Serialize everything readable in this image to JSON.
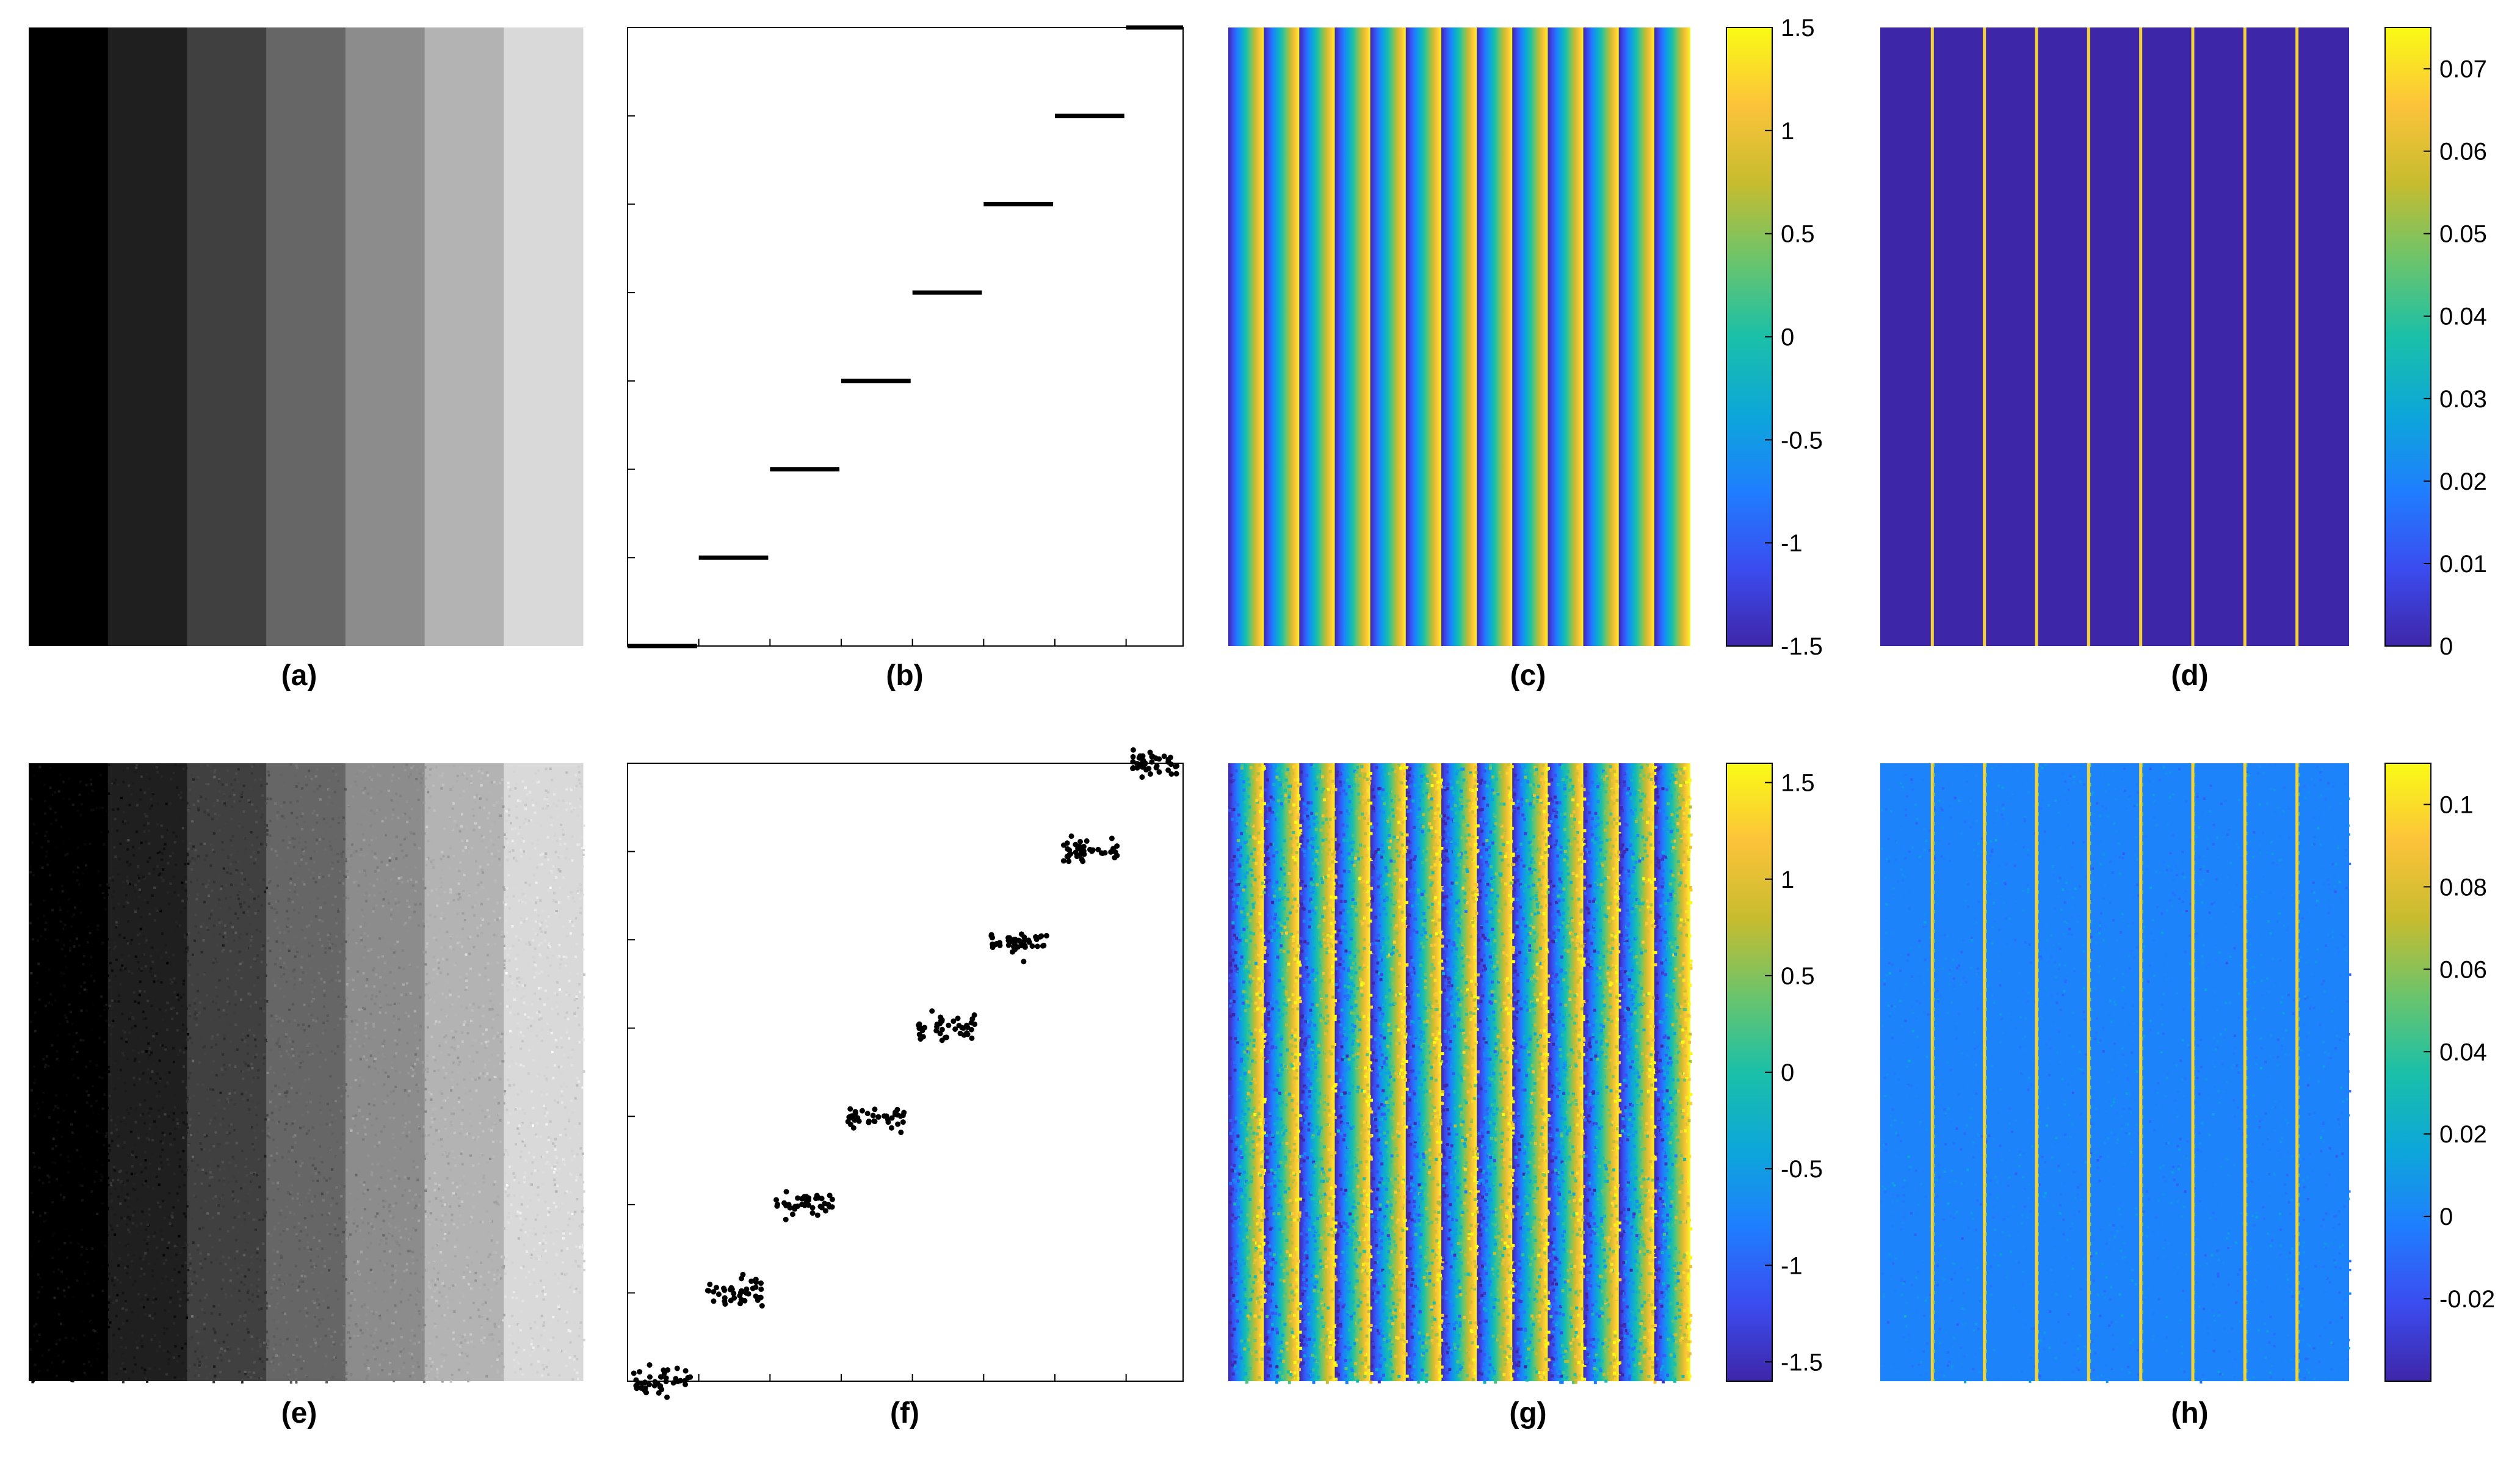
{
  "colors": {
    "background": "#ffffff",
    "ink": "#000000",
    "gray_stripes": [
      "#000000",
      "#1f1f1f",
      "#404040",
      "#666666",
      "#8c8c8c",
      "#b3b3b3",
      "#d9d9d9"
    ],
    "parula": [
      "#3e26a8",
      "#3b4cf0",
      "#1f7eff",
      "#0ca7d9",
      "#1ac0a8",
      "#6cc46b",
      "#c8bc2e",
      "#fcc33a",
      "#f9fb15"
    ]
  },
  "panels": [
    {
      "key": "a",
      "label": "(a)"
    },
    {
      "key": "b",
      "label": "(b)"
    },
    {
      "key": "c",
      "label": "(c)"
    },
    {
      "key": "d",
      "label": "(d)"
    },
    {
      "key": "e",
      "label": "(e)"
    },
    {
      "key": "f",
      "label": "(f)"
    },
    {
      "key": "g",
      "label": "(g)"
    },
    {
      "key": "h",
      "label": "(h)"
    }
  ],
  "chart_data": [
    {
      "panel": "(a)",
      "type": "heatmap",
      "colormap": "gray",
      "description_hint": "seven vertical gray stripes",
      "values": [
        0.0,
        0.12,
        0.25,
        0.4,
        0.55,
        0.7,
        0.85
      ],
      "noise": false
    },
    {
      "panel": "(b)",
      "type": "line",
      "x": [
        0,
        1,
        2,
        3,
        4,
        5,
        6,
        7
      ],
      "values": [
        0,
        1,
        2,
        3,
        4,
        5,
        6,
        7
      ],
      "ylim": [
        0,
        7
      ],
      "xlim": [
        0,
        7.8
      ],
      "xticks": [
        1,
        2,
        3,
        4,
        5,
        6,
        7
      ],
      "yticks": [
        1,
        2,
        3,
        4,
        5,
        6
      ],
      "noise": false
    },
    {
      "panel": "(c)",
      "type": "heatmap",
      "colormap": "parula",
      "stripes": 13,
      "clim": [
        -1.5,
        1.5
      ],
      "colorbar_ticks": [
        "1.5",
        "1",
        "0.5",
        "0",
        "-0.5",
        "-1",
        "-1.5"
      ],
      "noise": false
    },
    {
      "panel": "(d)",
      "type": "heatmap",
      "colormap": "parula",
      "lines": 8,
      "clim": [
        0,
        0.075
      ],
      "colorbar_ticks": [
        "0.07",
        "0.06",
        "0.05",
        "0.04",
        "0.03",
        "0.02",
        "0.01",
        "0"
      ],
      "noise": false
    },
    {
      "panel": "(e)",
      "type": "heatmap",
      "colormap": "gray",
      "values": [
        0.0,
        0.12,
        0.25,
        0.4,
        0.55,
        0.7,
        0.85
      ],
      "noise": true
    },
    {
      "panel": "(f)",
      "type": "scatter",
      "x": [
        0,
        1,
        2,
        3,
        4,
        5,
        6,
        7
      ],
      "values": [
        0,
        1,
        2,
        3,
        4,
        5,
        6,
        7
      ],
      "ylim": [
        0,
        7
      ],
      "xlim": [
        0,
        7.8
      ],
      "xticks": [
        1,
        2,
        3,
        4,
        5,
        6,
        7
      ],
      "yticks": [
        1,
        2,
        3,
        4,
        5,
        6
      ],
      "noise": true
    },
    {
      "panel": "(g)",
      "type": "heatmap",
      "colormap": "parula",
      "stripes": 13,
      "clim": [
        -1.6,
        1.6
      ],
      "colorbar_ticks": [
        "1.5",
        "1",
        "0.5",
        "0",
        "-0.5",
        "-1",
        "-1.5"
      ],
      "noise": true
    },
    {
      "panel": "(h)",
      "type": "heatmap",
      "colormap": "parula",
      "lines": 8,
      "clim": [
        -0.04,
        0.11
      ],
      "colorbar_ticks": [
        "0.1",
        "0.08",
        "0.06",
        "0.04",
        "0.02",
        "0",
        "-0.02"
      ],
      "noise": true
    }
  ]
}
